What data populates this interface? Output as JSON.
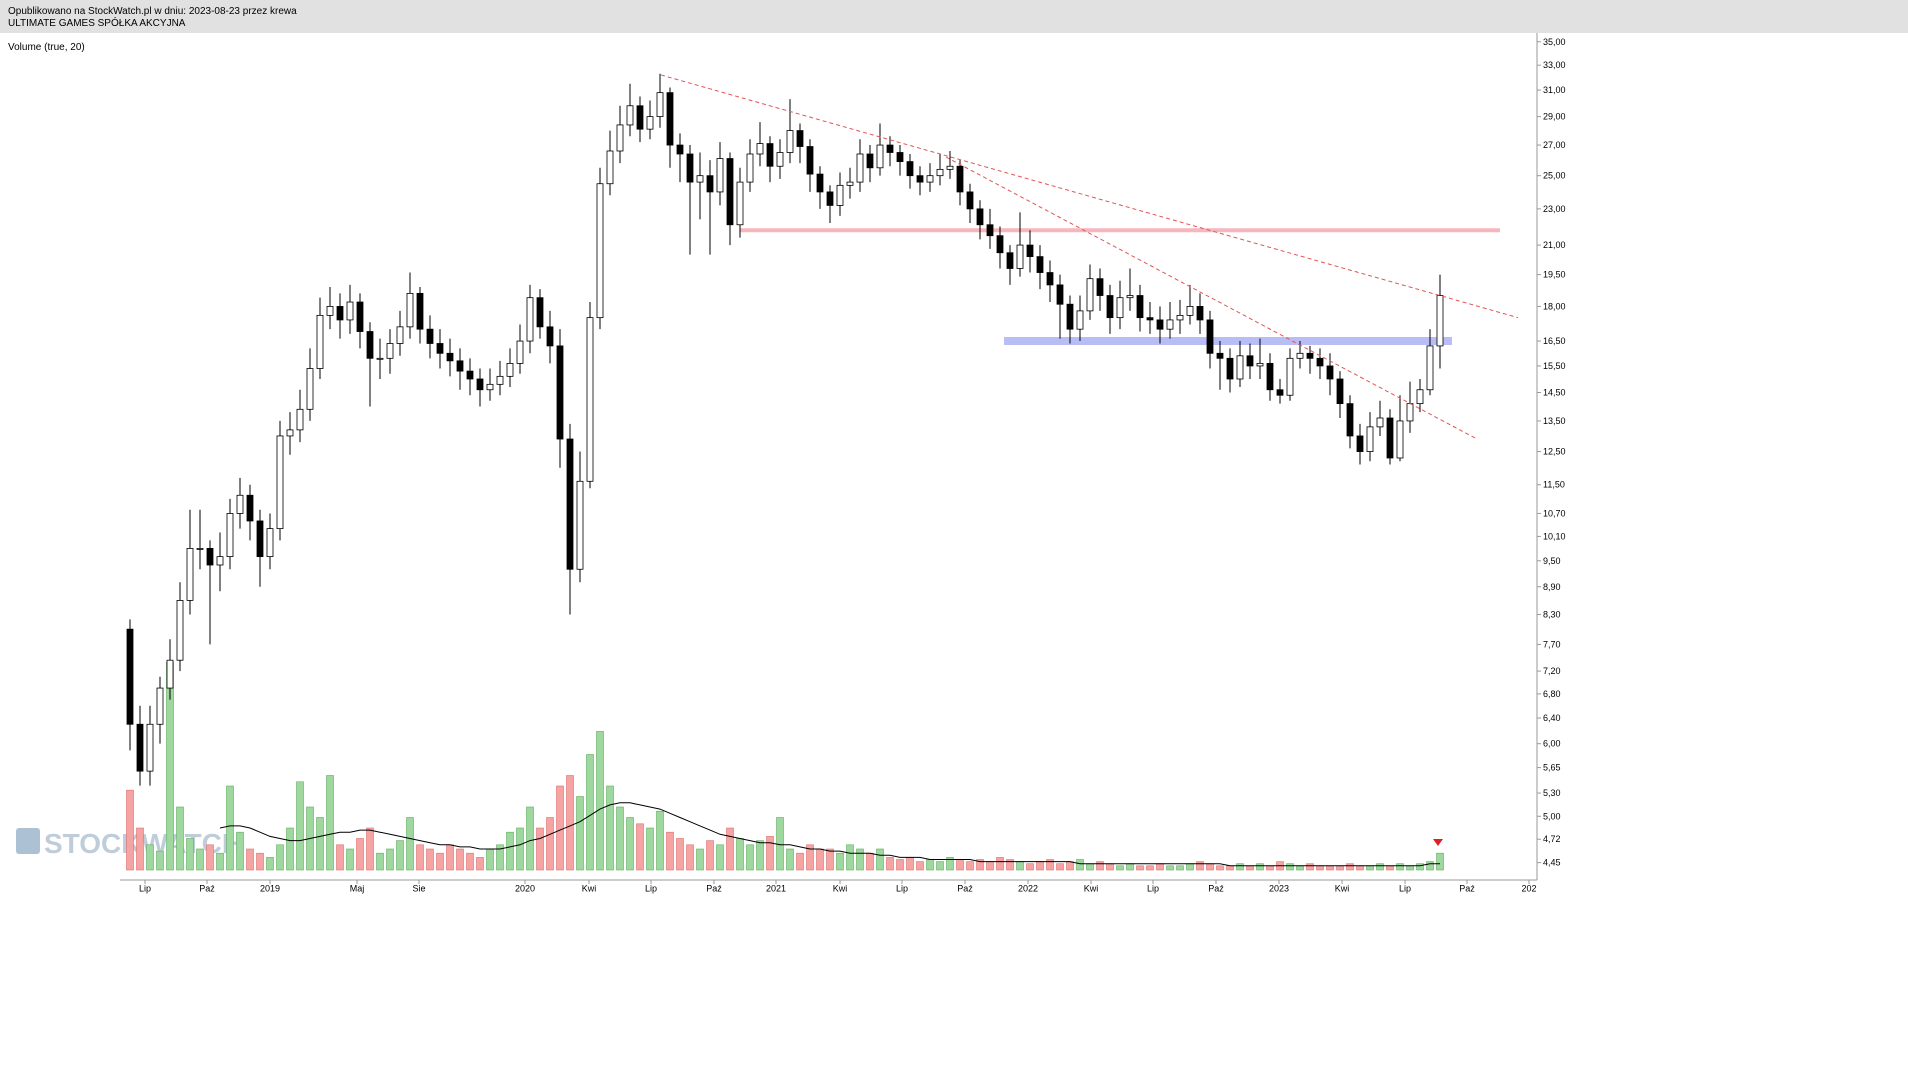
{
  "header": {
    "line1": "Opublikowano na StockWatch.pl w dniu: 2023-08-23 przez krewa",
    "line2": "ULTIMATE GAMES SPÓŁKA AKCYJNA"
  },
  "chart_data": {
    "type": "candlestick",
    "indicator_label": "Volume (true, 20)",
    "watermark": "STOCKWATCH",
    "log_scale": true,
    "up_color": "#ffffff",
    "down_color": "#000000",
    "volume_up_color": "#9fd89f",
    "volume_down_color": "#f5a3a3",
    "volume_ma_color": "#000000",
    "xlim": [
      -1,
      140.5
    ],
    "xticks": [
      {
        "value": 1.5,
        "label": "Lip"
      },
      {
        "value": 7.7,
        "label": "Paź"
      },
      {
        "value": 14.0,
        "label": "2019"
      },
      {
        "value": 22.7,
        "label": "Maj"
      },
      {
        "value": 28.9,
        "label": "Sie"
      },
      {
        "value": 39.5,
        "label": "2020"
      },
      {
        "value": 45.9,
        "label": "Kwi"
      },
      {
        "value": 52.1,
        "label": "Lip"
      },
      {
        "value": 58.4,
        "label": "Paź"
      },
      {
        "value": 64.6,
        "label": "2021"
      },
      {
        "value": 71.0,
        "label": "Kwi"
      },
      {
        "value": 77.2,
        "label": "Lip"
      },
      {
        "value": 83.5,
        "label": "Paź"
      },
      {
        "value": 89.8,
        "label": "2022"
      },
      {
        "value": 96.1,
        "label": "Kwi"
      },
      {
        "value": 102.3,
        "label": "Lip"
      },
      {
        "value": 108.6,
        "label": "Paź"
      },
      {
        "value": 114.9,
        "label": "2023"
      },
      {
        "value": 121.2,
        "label": "Kwi"
      },
      {
        "value": 127.5,
        "label": "Lip"
      },
      {
        "value": 133.7,
        "label": "Paź"
      },
      {
        "value": 139.9,
        "label": "202"
      }
    ],
    "ylim": [
      4.26,
      35.6
    ],
    "yticks": [
      {
        "value": 35,
        "label": "35,00"
      },
      {
        "value": 33,
        "label": "33,00"
      },
      {
        "value": 31,
        "label": "31,00"
      },
      {
        "value": 29,
        "label": "29,00"
      },
      {
        "value": 27,
        "label": "27,00"
      },
      {
        "value": 25,
        "label": "25,00"
      },
      {
        "value": 23,
        "label": "23,00"
      },
      {
        "value": 21,
        "label": "21,00"
      },
      {
        "value": 19.5,
        "label": "19,50"
      },
      {
        "value": 18,
        "label": "18,00"
      },
      {
        "value": 16.5,
        "label": "16,50"
      },
      {
        "value": 15.5,
        "label": "15,50"
      },
      {
        "value": 14.5,
        "label": "14,50"
      },
      {
        "value": 13.5,
        "label": "13,50"
      },
      {
        "value": 12.5,
        "label": "12,50"
      },
      {
        "value": 11.5,
        "label": "11,50"
      },
      {
        "value": 10.7,
        "label": "10,70"
      },
      {
        "value": 10.1,
        "label": "10,10"
      },
      {
        "value": 9.5,
        "label": "9,50"
      },
      {
        "value": 8.9,
        "label": "8,90"
      },
      {
        "value": 8.3,
        "label": "8,30"
      },
      {
        "value": 7.7,
        "label": "7,70"
      },
      {
        "value": 7.2,
        "label": "7,20"
      },
      {
        "value": 6.8,
        "label": "6,80"
      },
      {
        "value": 6.4,
        "label": "6,40"
      },
      {
        "value": 6,
        "label": "6,00"
      },
      {
        "value": 5.65,
        "label": "5,65"
      },
      {
        "value": 5.3,
        "label": "5,30"
      },
      {
        "value": 5,
        "label": "5,00"
      },
      {
        "value": 4.72,
        "label": "4,72"
      },
      {
        "value": 4.45,
        "label": "4,45"
      }
    ],
    "candles": [
      [
        8.0,
        8.2,
        5.9,
        6.3
      ],
      [
        6.3,
        6.6,
        5.4,
        5.6
      ],
      [
        5.6,
        6.6,
        5.4,
        6.3
      ],
      [
        6.3,
        7.1,
        6.0,
        6.9
      ],
      [
        6.9,
        7.8,
        6.7,
        7.4
      ],
      [
        7.4,
        9.0,
        7.2,
        8.6
      ],
      [
        8.6,
        10.8,
        8.3,
        9.8
      ],
      [
        9.8,
        10.8,
        9.3,
        9.8
      ],
      [
        9.8,
        10.0,
        7.7,
        9.4
      ],
      [
        9.4,
        10.2,
        8.8,
        9.6
      ],
      [
        9.6,
        11.1,
        9.3,
        10.7
      ],
      [
        10.7,
        11.7,
        10.3,
        11.2
      ],
      [
        11.2,
        11.5,
        10.0,
        10.5
      ],
      [
        10.5,
        10.8,
        8.9,
        9.6
      ],
      [
        9.6,
        10.7,
        9.3,
        10.3
      ],
      [
        10.3,
        13.5,
        10.0,
        13.0
      ],
      [
        13.0,
        13.8,
        12.4,
        13.2
      ],
      [
        13.2,
        14.6,
        12.8,
        13.9
      ],
      [
        13.9,
        16.2,
        13.5,
        15.4
      ],
      [
        15.4,
        18.4,
        15.0,
        17.6
      ],
      [
        17.6,
        18.9,
        17.0,
        18.0
      ],
      [
        18.0,
        18.6,
        16.6,
        17.4
      ],
      [
        17.4,
        19.0,
        16.8,
        18.2
      ],
      [
        18.2,
        18.6,
        16.2,
        16.9
      ],
      [
        16.9,
        17.3,
        14.0,
        15.8
      ],
      [
        15.8,
        16.6,
        15.0,
        15.8
      ],
      [
        15.8,
        17.0,
        15.2,
        16.4
      ],
      [
        16.4,
        17.8,
        15.9,
        17.1
      ],
      [
        17.1,
        19.6,
        16.6,
        18.6
      ],
      [
        18.6,
        18.9,
        16.4,
        17.0
      ],
      [
        17.0,
        17.6,
        15.8,
        16.4
      ],
      [
        16.4,
        17.0,
        15.4,
        16.0
      ],
      [
        16.0,
        16.6,
        15.1,
        15.7
      ],
      [
        15.7,
        16.2,
        14.6,
        15.3
      ],
      [
        15.3,
        15.8,
        14.4,
        15.0
      ],
      [
        15.0,
        15.4,
        14.0,
        14.6
      ],
      [
        14.6,
        15.4,
        14.2,
        14.8
      ],
      [
        14.8,
        15.7,
        14.4,
        15.1
      ],
      [
        15.1,
        16.2,
        14.7,
        15.6
      ],
      [
        15.6,
        17.2,
        15.2,
        16.5
      ],
      [
        16.5,
        19.0,
        16.0,
        18.4
      ],
      [
        18.4,
        18.8,
        16.6,
        17.1
      ],
      [
        17.1,
        17.8,
        15.6,
        16.3
      ],
      [
        16.3,
        17.0,
        12.0,
        12.9
      ],
      [
        12.9,
        13.4,
        8.3,
        9.3
      ],
      [
        9.3,
        12.5,
        9.0,
        11.6
      ],
      [
        11.6,
        18.2,
        11.4,
        17.5
      ],
      [
        17.5,
        25.5,
        17.0,
        24.5
      ],
      [
        24.5,
        28.0,
        23.8,
        26.6
      ],
      [
        26.6,
        29.8,
        25.8,
        28.4
      ],
      [
        28.4,
        31.5,
        27.6,
        29.8
      ],
      [
        29.8,
        30.5,
        27.2,
        28.1
      ],
      [
        28.1,
        30.2,
        27.4,
        29.0
      ],
      [
        29.0,
        32.3,
        28.2,
        30.8
      ],
      [
        30.8,
        31.2,
        25.5,
        27.0
      ],
      [
        27.0,
        27.8,
        24.6,
        26.4
      ],
      [
        26.4,
        27.0,
        20.5,
        24.6
      ],
      [
        24.6,
        26.5,
        22.4,
        25.0
      ],
      [
        25.0,
        26.0,
        20.5,
        24.0
      ],
      [
        24.0,
        27.2,
        23.2,
        26.1
      ],
      [
        26.1,
        26.5,
        21.0,
        22.1
      ],
      [
        22.1,
        25.5,
        21.4,
        24.6
      ],
      [
        24.6,
        27.4,
        24.0,
        26.4
      ],
      [
        26.4,
        28.6,
        25.6,
        27.1
      ],
      [
        27.1,
        27.6,
        24.6,
        25.6
      ],
      [
        25.6,
        27.4,
        24.8,
        26.5
      ],
      [
        26.5,
        30.3,
        25.8,
        28.0
      ],
      [
        28.0,
        28.5,
        25.8,
        26.9
      ],
      [
        26.9,
        27.4,
        24.0,
        25.1
      ],
      [
        25.1,
        25.6,
        23.0,
        24.0
      ],
      [
        24.0,
        24.4,
        22.2,
        23.2
      ],
      [
        23.2,
        25.2,
        22.6,
        24.4
      ],
      [
        24.4,
        25.5,
        23.6,
        24.6
      ],
      [
        24.6,
        27.4,
        24.0,
        26.4
      ],
      [
        26.4,
        27.0,
        24.6,
        25.5
      ],
      [
        25.5,
        28.5,
        25.0,
        27.0
      ],
      [
        27.0,
        27.6,
        25.6,
        26.5
      ],
      [
        26.5,
        27.0,
        25.0,
        25.9
      ],
      [
        25.9,
        26.4,
        24.2,
        25.0
      ],
      [
        25.0,
        25.6,
        23.8,
        24.6
      ],
      [
        24.6,
        25.8,
        24.0,
        25.0
      ],
      [
        25.0,
        26.4,
        24.4,
        25.4
      ],
      [
        25.4,
        26.6,
        24.8,
        25.6
      ],
      [
        25.6,
        26.0,
        23.2,
        24.0
      ],
      [
        24.0,
        24.5,
        22.2,
        23.0
      ],
      [
        23.0,
        23.5,
        21.3,
        22.1
      ],
      [
        22.1,
        23.0,
        20.8,
        21.5
      ],
      [
        21.5,
        22.0,
        19.8,
        20.6
      ],
      [
        20.6,
        21.0,
        19.0,
        19.8
      ],
      [
        19.8,
        22.8,
        19.4,
        21.0
      ],
      [
        21.0,
        21.8,
        19.6,
        20.4
      ],
      [
        20.4,
        21.0,
        18.8,
        19.6
      ],
      [
        19.6,
        20.2,
        18.2,
        19.0
      ],
      [
        19.0,
        19.5,
        16.6,
        18.1
      ],
      [
        18.1,
        18.5,
        16.4,
        17.0
      ],
      [
        17.0,
        18.5,
        16.5,
        17.8
      ],
      [
        17.8,
        20.0,
        17.4,
        19.3
      ],
      [
        19.3,
        19.8,
        17.8,
        18.5
      ],
      [
        18.5,
        19.0,
        16.8,
        17.5
      ],
      [
        17.5,
        19.2,
        17.0,
        18.4
      ],
      [
        18.4,
        19.8,
        17.8,
        18.5
      ],
      [
        18.5,
        19.0,
        16.9,
        17.5
      ],
      [
        17.5,
        18.2,
        16.8,
        17.4
      ],
      [
        17.4,
        18.0,
        16.4,
        17.0
      ],
      [
        17.0,
        18.2,
        16.6,
        17.4
      ],
      [
        17.4,
        18.3,
        16.8,
        17.6
      ],
      [
        17.6,
        19.0,
        17.2,
        18.0
      ],
      [
        18.0,
        18.6,
        16.8,
        17.4
      ],
      [
        17.4,
        17.8,
        15.4,
        16.0
      ],
      [
        16.0,
        16.5,
        14.6,
        15.8
      ],
      [
        15.8,
        16.2,
        14.5,
        15.0
      ],
      [
        15.0,
        16.5,
        14.7,
        15.9
      ],
      [
        15.9,
        16.4,
        15.0,
        15.5
      ],
      [
        15.5,
        16.6,
        15.0,
        15.6
      ],
      [
        15.6,
        16.0,
        14.2,
        14.6
      ],
      [
        14.6,
        15.0,
        14.1,
        14.4
      ],
      [
        14.4,
        16.2,
        14.2,
        15.8
      ],
      [
        15.8,
        16.5,
        15.4,
        16.0
      ],
      [
        16.0,
        16.3,
        15.2,
        15.8
      ],
      [
        15.8,
        16.2,
        15.0,
        15.5
      ],
      [
        15.5,
        16.0,
        14.4,
        15.0
      ],
      [
        15.0,
        15.3,
        13.6,
        14.1
      ],
      [
        14.1,
        14.4,
        12.6,
        13.0
      ],
      [
        13.0,
        13.4,
        12.1,
        12.5
      ],
      [
        12.5,
        13.8,
        12.2,
        13.3
      ],
      [
        13.3,
        14.2,
        13.0,
        13.6
      ],
      [
        13.6,
        13.9,
        12.1,
        12.3
      ],
      [
        12.3,
        14.4,
        12.2,
        13.5
      ],
      [
        13.5,
        14.9,
        13.1,
        14.1
      ],
      [
        14.1,
        15.0,
        13.8,
        14.6
      ],
      [
        14.6,
        17.0,
        14.4,
        16.3
      ],
      [
        16.3,
        19.5,
        15.4,
        18.5
      ]
    ],
    "vlim": [
      0,
      100
    ],
    "volumes": [
      38,
      20,
      12,
      9,
      99,
      30,
      15,
      10,
      12,
      8,
      40,
      18,
      10,
      8,
      6,
      12,
      20,
      42,
      30,
      25,
      45,
      12,
      10,
      15,
      20,
      8,
      10,
      14,
      25,
      12,
      10,
      8,
      12,
      10,
      8,
      6,
      10,
      12,
      18,
      20,
      30,
      20,
      25,
      40,
      45,
      35,
      55,
      66,
      40,
      30,
      25,
      22,
      20,
      28,
      18,
      15,
      12,
      10,
      14,
      12,
      20,
      15,
      12,
      14,
      16,
      25,
      10,
      8,
      12,
      10,
      10,
      8,
      12,
      10,
      8,
      10,
      6,
      5,
      6,
      4,
      5,
      4,
      6,
      5,
      4,
      5,
      4,
      6,
      5,
      4,
      3,
      4,
      5,
      3,
      4,
      5,
      3,
      4,
      3,
      2,
      3,
      2,
      2,
      3,
      2,
      2,
      3,
      4,
      3,
      2,
      2,
      3,
      2,
      3,
      2,
      4,
      3,
      2,
      3,
      2,
      2,
      2,
      3,
      2,
      2,
      3,
      2,
      3,
      2,
      3,
      4,
      8
    ],
    "volume_ma": [
      null,
      null,
      null,
      null,
      null,
      null,
      null,
      null,
      null,
      20,
      21,
      21,
      20,
      18,
      16,
      15,
      14,
      14,
      15,
      16,
      17,
      18,
      18,
      19,
      19,
      18,
      17,
      16,
      15,
      14,
      13,
      12,
      12,
      11,
      11,
      10,
      10,
      10,
      11,
      12,
      14,
      15,
      17,
      19,
      21,
      23,
      26,
      29,
      31,
      32,
      32,
      31,
      30,
      29,
      27,
      25,
      23,
      21,
      19,
      17,
      16,
      15,
      14,
      13,
      13,
      12,
      12,
      11,
      10,
      10,
      9,
      9,
      8,
      8,
      8,
      7,
      7,
      6,
      6,
      6,
      5,
      5,
      5,
      5,
      5,
      4,
      4,
      4,
      4,
      4,
      4,
      4,
      4,
      4,
      4,
      3,
      3,
      3,
      3,
      3,
      3,
      3,
      3,
      3,
      3,
      3,
      3,
      3,
      3,
      3,
      2,
      2,
      2,
      2,
      2,
      2,
      2,
      2,
      2,
      2,
      2,
      2,
      2,
      2,
      2,
      2,
      2,
      2,
      2,
      2,
      3,
      3
    ],
    "trend_lines": [
      {
        "color": "#e05555",
        "points": [
          [
            53.1,
            32.2
          ],
          [
            138.8,
            17.5
          ]
        ]
      },
      {
        "color": "#e05555",
        "points": [
          [
            81.6,
            26.2
          ],
          [
            134.7,
            12.9
          ]
        ]
      }
    ],
    "zones": [
      {
        "color": "#f7b6bd",
        "price": 21.8,
        "from": 61,
        "to": 137,
        "width": 4
      },
      {
        "color": "#b9bdf6",
        "price": 16.5,
        "from": 87.4,
        "to": 132.2,
        "width": 8
      }
    ]
  }
}
